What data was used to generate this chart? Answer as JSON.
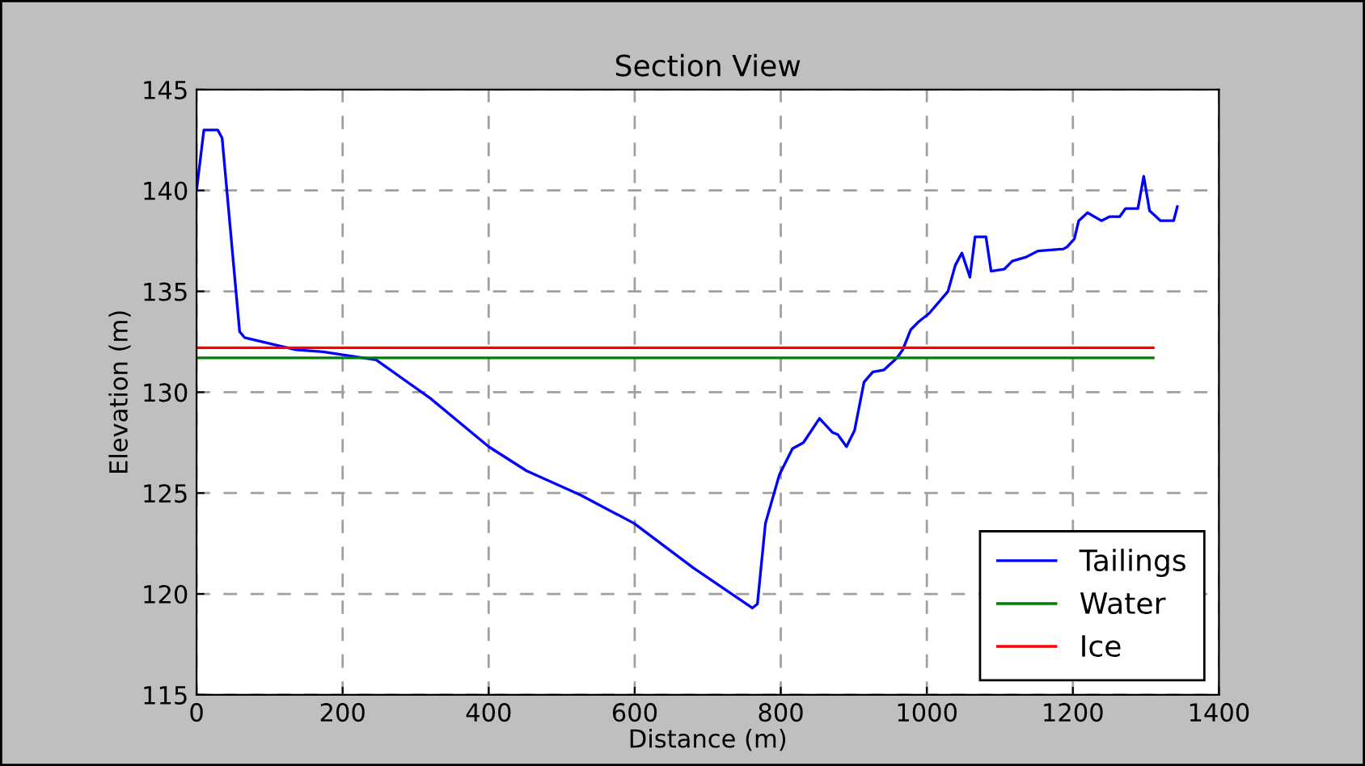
{
  "chart_data": {
    "type": "line",
    "title": "Section View",
    "xlabel": "Distance (m)",
    "ylabel": "Elevation (m)",
    "xlim": [
      0,
      1400
    ],
    "xticks": [
      0,
      200,
      400,
      600,
      800,
      1000,
      1200,
      1400
    ],
    "ylim": [
      115,
      145
    ],
    "yticks": [
      115,
      120,
      125,
      130,
      135,
      140,
      145
    ],
    "grid": true,
    "legend": "bottom right",
    "series": [
      {
        "name": "Tailings",
        "color": "#0000ff",
        "x": [
          0,
          10,
          29,
          35,
          59,
          66,
          136,
          173,
          246,
          320,
          400,
          452,
          526,
          599,
          680,
          761,
          768,
          779,
          798,
          816,
          831,
          853,
          871,
          878,
          890,
          901,
          914,
          926,
          941,
          959,
          967,
          978,
          989,
          1003,
          1029,
          1039,
          1048,
          1059,
          1066,
          1081,
          1088,
          1106,
          1117,
          1136,
          1152,
          1187,
          1192,
          1202,
          1208,
          1220,
          1239,
          1250,
          1264,
          1272,
          1289,
          1297,
          1305,
          1320,
          1338,
          1343
        ],
        "values": [
          140,
          143,
          143,
          142.6,
          133,
          132.7,
          132.1,
          132,
          131.6,
          129.7,
          127.3,
          126.1,
          124.9,
          123.5,
          121.3,
          119.3,
          119.5,
          123.5,
          125.9,
          127.2,
          127.5,
          128.7,
          128,
          127.9,
          127.3,
          128.1,
          130.5,
          131,
          131.1,
          131.7,
          132.1,
          133.1,
          133.5,
          133.9,
          135,
          136.3,
          136.9,
          135.7,
          137.7,
          137.7,
          136,
          136.1,
          136.5,
          136.7,
          137,
          137.1,
          137.2,
          137.6,
          138.5,
          138.9,
          138.5,
          138.7,
          138.7,
          139.1,
          139.1,
          140.7,
          139,
          138.5,
          138.5,
          139.2
        ]
      },
      {
        "name": "Water",
        "color": "#008000",
        "x": [
          0,
          1310
        ],
        "values": [
          131.7,
          131.7
        ]
      },
      {
        "name": "Ice",
        "color": "#ff0000",
        "x": [
          0,
          1310
        ],
        "values": [
          132.2,
          132.2
        ]
      }
    ]
  }
}
